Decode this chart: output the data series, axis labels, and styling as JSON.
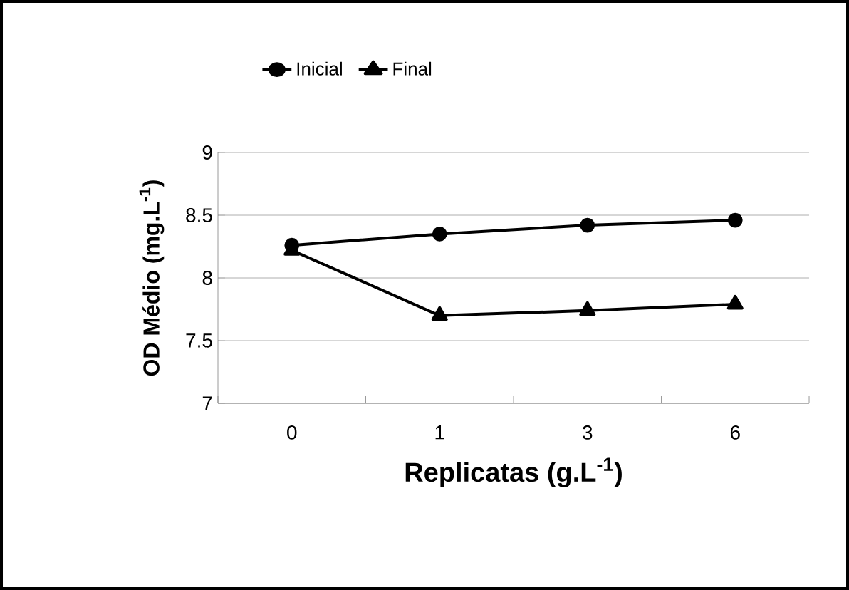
{
  "chart_data": {
    "type": "line",
    "xlabel": "Replicatas (g.L$^{-1}$)",
    "ylabel": "OD Médio (mg.L$^{-1}$)",
    "categories": [
      "0",
      "1",
      "3",
      "6"
    ],
    "series": [
      {
        "name": "Inicial",
        "color": "#000000",
        "marker": "circle",
        "values": [
          8.26,
          8.35,
          8.42,
          8.46
        ]
      },
      {
        "name": "Final",
        "color": "#000000",
        "marker": "triangle",
        "values": [
          8.22,
          7.7,
          7.74,
          7.79
        ]
      }
    ],
    "ylim": [
      7,
      9
    ],
    "yticks": [
      7,
      7.5,
      8,
      8.5,
      9
    ],
    "grid": "y",
    "legend": "top",
    "line_style": "solid"
  }
}
